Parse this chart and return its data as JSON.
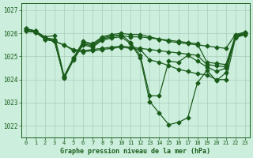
{
  "bg_color": "#cceedd",
  "grid_color": "#aaccbb",
  "line_color": "#1a5c1a",
  "xlabel": "Graphe pression niveau de la mer (hPa)",
  "xlim": [
    -0.5,
    23.5
  ],
  "ylim": [
    1021.5,
    1027.3
  ],
  "yticks": [
    1022,
    1023,
    1024,
    1025,
    1026,
    1027
  ],
  "xticks": [
    0,
    1,
    2,
    3,
    4,
    5,
    6,
    7,
    8,
    9,
    10,
    11,
    12,
    13,
    14,
    15,
    16,
    17,
    18,
    19,
    20,
    21,
    22,
    23
  ],
  "series": [
    {
      "y": [
        1026.2,
        1026.1,
        1025.85,
        1025.9,
        1024.15,
        1024.95,
        1025.65,
        1025.55,
        1025.85,
        1025.95,
        1026.0,
        1025.95,
        1025.95,
        1025.85,
        1025.75,
        1025.65,
        1025.6,
        1025.55,
        1025.5,
        1025.45,
        1025.4,
        1025.35,
        1025.95,
        1026.05
      ],
      "marker": "D",
      "ms": 2.5,
      "lw": 0.9
    },
    {
      "y": [
        1026.15,
        1026.05,
        1025.75,
        1025.65,
        1024.1,
        1024.9,
        1025.6,
        1025.5,
        1025.8,
        1025.9,
        1025.9,
        1025.85,
        1025.85,
        1025.8,
        1025.75,
        1025.7,
        1025.65,
        1025.6,
        1025.55,
        1024.75,
        1024.7,
        1024.65,
        1025.9,
        1026.0
      ],
      "marker": "D",
      "ms": 2.5,
      "lw": 0.9
    },
    {
      "y": [
        1026.1,
        1026.05,
        1025.75,
        1025.65,
        1025.5,
        1025.3,
        1025.25,
        1025.3,
        1025.35,
        1025.4,
        1025.45,
        1025.4,
        1025.35,
        1025.3,
        1025.25,
        1025.2,
        1025.15,
        1025.1,
        1025.05,
        1024.65,
        1024.6,
        1024.55,
        1025.85,
        1025.95
      ],
      "marker": "D",
      "ms": 2.5,
      "lw": 0.9
    },
    {
      "y": [
        1026.2,
        1026.1,
        1025.8,
        1025.75,
        1024.1,
        1024.9,
        1025.55,
        1025.45,
        1025.75,
        1025.85,
        1025.95,
        1025.6,
        1025.05,
        1023.3,
        1023.3,
        1024.8,
        1024.75,
        1025.05,
        1024.8,
        1024.55,
        1024.35,
        1024.5,
        1025.85,
        1026.0
      ],
      "marker": "D",
      "ms": 2.5,
      "lw": 0.9
    },
    {
      "y": [
        1026.2,
        1026.1,
        1025.8,
        1025.7,
        1024.05,
        1024.85,
        1025.5,
        1025.4,
        1025.7,
        1025.8,
        1025.85,
        1025.55,
        1024.95,
        1023.05,
        1022.55,
        1022.05,
        1022.15,
        1022.35,
        1023.85,
        1024.4,
        1023.95,
        1024.3,
        1025.9,
        1026.05
      ],
      "marker": "D",
      "ms": 2.5,
      "lw": 0.9
    },
    {
      "y": [
        1026.1,
        1026.05,
        1025.75,
        1025.65,
        1025.5,
        1025.25,
        1025.2,
        1025.25,
        1025.3,
        1025.35,
        1025.4,
        1025.35,
        1025.3,
        1024.85,
        1024.75,
        1024.6,
        1024.45,
        1024.35,
        1024.25,
        1024.2,
        1024.0,
        1024.0,
        1025.8,
        1025.95
      ],
      "marker": "D",
      "ms": 2.5,
      "lw": 0.9
    }
  ]
}
